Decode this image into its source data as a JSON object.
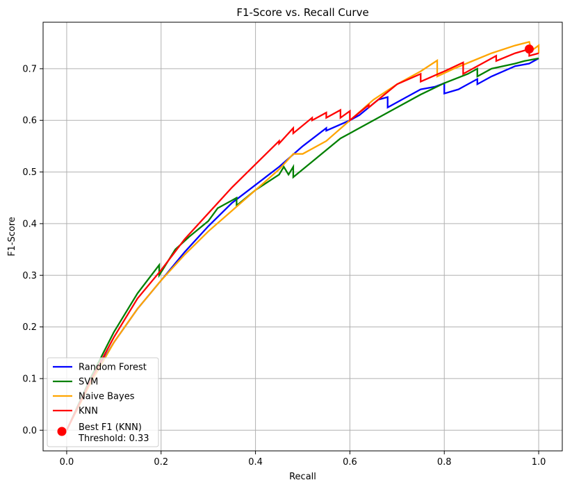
{
  "chart_data": {
    "type": "line",
    "title": "F1-Score vs. Recall Curve",
    "xlabel": "Recall",
    "ylabel": "F1-Score",
    "xlim": [
      -0.05,
      1.05
    ],
    "ylim": [
      -0.04,
      0.79
    ],
    "x_ticks": [
      0.0,
      0.2,
      0.4,
      0.6,
      0.8,
      1.0
    ],
    "y_ticks": [
      0.0,
      0.1,
      0.2,
      0.3,
      0.4,
      0.5,
      0.6,
      0.7
    ],
    "x_tick_labels": [
      "0.0",
      "0.2",
      "0.4",
      "0.6",
      "0.8",
      "1.0"
    ],
    "y_tick_labels": [
      "0.0",
      "0.1",
      "0.2",
      "0.3",
      "0.4",
      "0.5",
      "0.6",
      "0.7"
    ],
    "grid": true,
    "legend_position": "lower-left",
    "series": [
      {
        "name": "Random Forest",
        "color": "#0000ff",
        "x": [
          0.0,
          0.05,
          0.08,
          0.1,
          0.15,
          0.2,
          0.25,
          0.3,
          0.35,
          0.4,
          0.45,
          0.5,
          0.55,
          0.55,
          0.6,
          0.62,
          0.66,
          0.68,
          0.68,
          0.72,
          0.75,
          0.78,
          0.8,
          0.8,
          0.83,
          0.87,
          0.87,
          0.9,
          0.95,
          0.98,
          1.0
        ],
        "y": [
          0.0,
          0.095,
          0.14,
          0.17,
          0.235,
          0.29,
          0.345,
          0.395,
          0.44,
          0.475,
          0.51,
          0.55,
          0.585,
          0.58,
          0.6,
          0.61,
          0.64,
          0.645,
          0.625,
          0.645,
          0.66,
          0.665,
          0.672,
          0.652,
          0.66,
          0.68,
          0.67,
          0.685,
          0.705,
          0.71,
          0.72
        ]
      },
      {
        "name": "SVM",
        "color": "#008000",
        "x": [
          0.0,
          0.05,
          0.1,
          0.15,
          0.196,
          0.196,
          0.23,
          0.26,
          0.3,
          0.32,
          0.35,
          0.36,
          0.36,
          0.4,
          0.45,
          0.46,
          0.47,
          0.48,
          0.48,
          0.52,
          0.58,
          0.6,
          0.65,
          0.7,
          0.75,
          0.8,
          0.85,
          0.87,
          0.87,
          0.9,
          0.95,
          0.97,
          1.0
        ],
        "y": [
          0.0,
          0.1,
          0.19,
          0.265,
          0.32,
          0.3,
          0.35,
          0.375,
          0.405,
          0.43,
          0.445,
          0.45,
          0.435,
          0.465,
          0.495,
          0.51,
          0.495,
          0.51,
          0.49,
          0.52,
          0.565,
          0.575,
          0.6,
          0.625,
          0.65,
          0.672,
          0.69,
          0.7,
          0.685,
          0.7,
          0.71,
          0.715,
          0.72
        ]
      },
      {
        "name": "Naive Bayes",
        "color": "#ffa500",
        "x": [
          0.0,
          0.05,
          0.1,
          0.15,
          0.2,
          0.25,
          0.3,
          0.35,
          0.4,
          0.45,
          0.48,
          0.5,
          0.55,
          0.6,
          0.65,
          0.7,
          0.75,
          0.785,
          0.785,
          0.82,
          0.86,
          0.9,
          0.95,
          0.98,
          0.985,
          1.0,
          1.0
        ],
        "y": [
          0.0,
          0.09,
          0.17,
          0.235,
          0.29,
          0.34,
          0.385,
          0.425,
          0.465,
          0.505,
          0.535,
          0.535,
          0.56,
          0.6,
          0.64,
          0.67,
          0.695,
          0.716,
          0.685,
          0.7,
          0.715,
          0.73,
          0.745,
          0.752,
          0.735,
          0.745,
          0.73
        ]
      },
      {
        "name": "KNN",
        "color": "#ff0000",
        "x": [
          0.0,
          0.05,
          0.1,
          0.15,
          0.2,
          0.25,
          0.3,
          0.35,
          0.4,
          0.45,
          0.45,
          0.48,
          0.48,
          0.52,
          0.52,
          0.55,
          0.55,
          0.58,
          0.58,
          0.6,
          0.6,
          0.64,
          0.64,
          0.7,
          0.75,
          0.75,
          0.8,
          0.84,
          0.84,
          0.88,
          0.91,
          0.91,
          0.95,
          0.98,
          0.98,
          1.0
        ],
        "y": [
          0.0,
          0.095,
          0.18,
          0.255,
          0.31,
          0.37,
          0.42,
          0.47,
          0.515,
          0.56,
          0.555,
          0.585,
          0.575,
          0.605,
          0.6,
          0.615,
          0.605,
          0.62,
          0.605,
          0.618,
          0.6,
          0.63,
          0.625,
          0.67,
          0.69,
          0.675,
          0.695,
          0.712,
          0.69,
          0.71,
          0.725,
          0.715,
          0.73,
          0.738,
          0.725,
          0.73
        ]
      }
    ],
    "best_point": {
      "label_line1": "Best F1 (KNN)",
      "label_line2": "Threshold: 0.33",
      "x": 0.98,
      "y": 0.738,
      "color": "#ff0000"
    }
  }
}
